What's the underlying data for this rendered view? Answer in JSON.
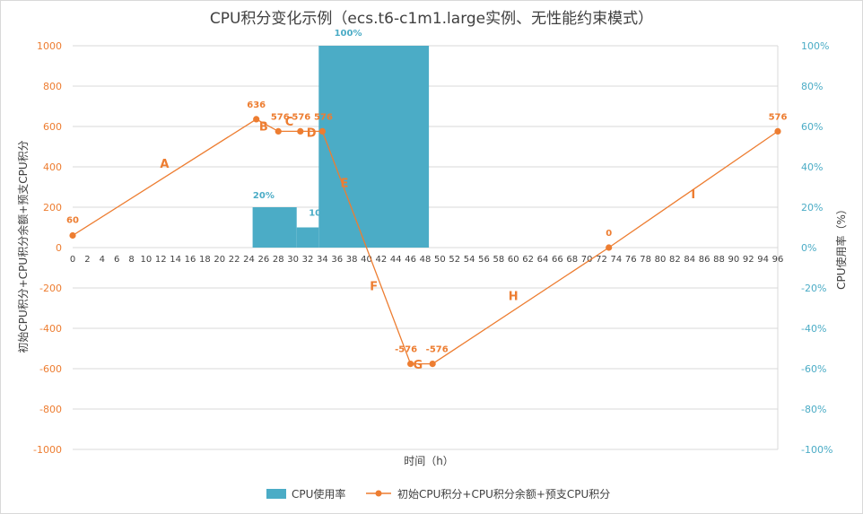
{
  "chart_data": {
    "type": "bar+line",
    "title": "CPU积分变化示例（ecs.t6-c1m1.large实例、无性能约束模式）",
    "xlabel": "时间（h）",
    "ylabel_left": "初始CPU积分+CPU积分余额+预支CPU积分",
    "ylabel_right": "CPU使用率（%）",
    "x_range": [
      0,
      96
    ],
    "x_ticks": [
      0,
      2,
      4,
      6,
      8,
      10,
      12,
      14,
      16,
      18,
      20,
      22,
      24,
      26,
      28,
      30,
      32,
      34,
      36,
      38,
      40,
      42,
      44,
      46,
      48,
      50,
      52,
      54,
      56,
      58,
      60,
      62,
      64,
      66,
      68,
      70,
      72,
      74,
      76,
      78,
      80,
      82,
      84,
      86,
      88,
      90,
      92,
      94,
      96
    ],
    "ylim_left": [
      -1000,
      1000
    ],
    "ylim_right": [
      -100,
      100
    ],
    "y_ticks_left": [
      1000,
      800,
      600,
      400,
      200,
      0,
      -200,
      -400,
      -600,
      -800,
      -1000
    ],
    "y_ticks_right": [
      "100%",
      "80%",
      "60%",
      "40%",
      "20%",
      "0%",
      "-20%",
      "-40%",
      "-60%",
      "-80%",
      "-100%"
    ],
    "grid": true,
    "legend_position": "bottom",
    "colors": {
      "bar": "#4bacc6",
      "line": "#ed7d31"
    },
    "bar_series": {
      "name": "CPU使用率",
      "segments": [
        {
          "x_start": 24.5,
          "x_end": 30.5,
          "value": 20,
          "label": "20%"
        },
        {
          "x_start": 30.5,
          "x_end": 33.5,
          "value": 10,
          "label": "10"
        },
        {
          "x_start": 33.5,
          "x_end": 48.5,
          "value": 100,
          "label": "100%"
        }
      ]
    },
    "line_series": {
      "name": "初始CPU积分+CPU积分余额+预支CPU积分",
      "points": [
        {
          "x": 0,
          "y": 60,
          "label": "60"
        },
        {
          "x": 25,
          "y": 636,
          "label": "636"
        },
        {
          "x": 28,
          "y": 576,
          "label": "576"
        },
        {
          "x": 31,
          "y": 576,
          "label": "576"
        },
        {
          "x": 34,
          "y": 576,
          "label": "576"
        },
        {
          "x": 46,
          "y": -576,
          "label": "-576"
        },
        {
          "x": 49,
          "y": -576,
          "label": "-576"
        },
        {
          "x": 73,
          "y": 0,
          "label": "0"
        },
        {
          "x": 96,
          "y": 576,
          "label": "576"
        }
      ]
    },
    "segment_labels": [
      {
        "text": "A",
        "x": 12.5,
        "y": 395
      },
      {
        "text": "B",
        "x": 26,
        "y": 580
      },
      {
        "text": "C",
        "x": 29.5,
        "y": 605
      },
      {
        "text": "D",
        "x": 32.5,
        "y": 550
      },
      {
        "text": "E",
        "x": 37,
        "y": 300
      },
      {
        "text": "F",
        "x": 41,
        "y": -210
      },
      {
        "text": "G",
        "x": 47,
        "y": -600
      },
      {
        "text": "H",
        "x": 60,
        "y": -260
      },
      {
        "text": "I",
        "x": 84.5,
        "y": 245
      }
    ]
  }
}
